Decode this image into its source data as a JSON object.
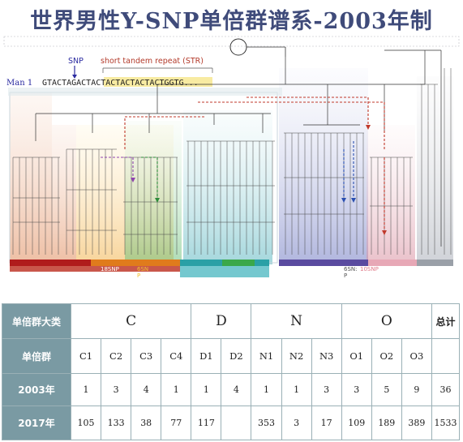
{
  "title": "世界男性Y-SNP单倍群谱系-2003年制",
  "figure": {
    "snp_label": "SNP",
    "str_label": "short tandem repeat (STR)",
    "man_label": "Man 1",
    "sequence": "GTACTAGACTACTACTACTACTACTGGTG...",
    "bottom_label_left": "18SNP",
    "bottom_label_mid": "6SN",
    "bottom_label_p": "P",
    "bottom_label_right1": "6SN:",
    "bottom_label_right2": "10SNP",
    "bottom_label_right_p": "P",
    "colors": {
      "band_red": "#b01c1c",
      "band_purple": "#5a4ba0",
      "band_orange": "#e07b1c",
      "band_teal": "#2aa0a6",
      "band_green": "#3aa84a",
      "band_gray": "#9aa0a8",
      "title": "#3f4b7a",
      "header_bg": "#7a9aa3"
    }
  },
  "table": {
    "row_header_major": "单倍群大类",
    "row_header_sub": "单倍群",
    "row_2003": "2003年",
    "row_2017": "2017年",
    "groups": [
      {
        "label": "C",
        "span": 4
      },
      {
        "label": "D",
        "span": 2
      },
      {
        "label": "N",
        "span": 3
      },
      {
        "label": "O",
        "span": 3
      }
    ],
    "total_label": "总计",
    "subgroups": [
      "C1",
      "C2",
      "C3",
      "C4",
      "D1",
      "D2",
      "N1",
      "N2",
      "N3",
      "O1",
      "O2",
      "O3"
    ],
    "values_2003": [
      "1",
      "3",
      "4",
      "1",
      "1",
      "4",
      "1",
      "1",
      "3",
      "3",
      "5",
      "9"
    ],
    "total_2003": "36",
    "values_2017": [
      "105",
      "133",
      "38",
      "77",
      "117",
      "",
      "353",
      "3",
      "17",
      "109",
      "189",
      "389"
    ],
    "total_2017": "1533"
  }
}
